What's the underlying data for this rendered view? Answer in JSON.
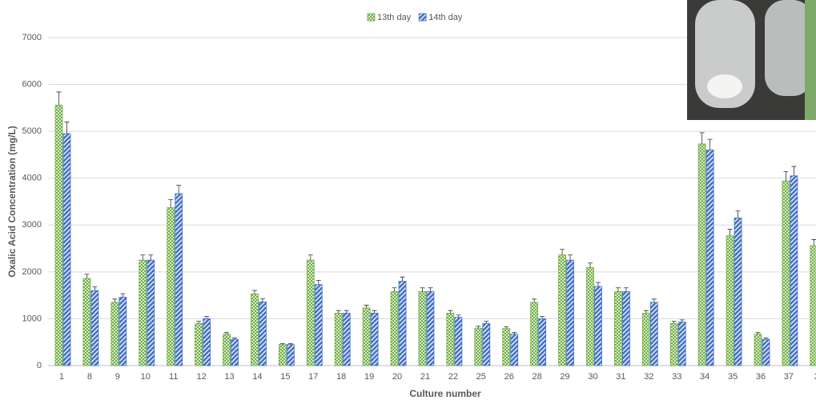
{
  "chart_data": {
    "type": "bar",
    "y_label": "Oxalic Acid Concentration (mg/L)",
    "x_label": "Culture number",
    "categories": [
      "1",
      "8",
      "9",
      "10",
      "11",
      "12",
      "13",
      "14",
      "15",
      "17",
      "18",
      "19",
      "20",
      "21",
      "22",
      "25",
      "26",
      "28",
      "29",
      "30",
      "31",
      "32",
      "33",
      "34",
      "35",
      "36",
      "37",
      "3"
    ],
    "series": [
      {
        "name": "13th day",
        "color": "#70ad47",
        "values": [
          5560,
          1860,
          1350,
          2250,
          3370,
          900,
          670,
          1530,
          450,
          2250,
          1120,
          1230,
          1580,
          1580,
          1120,
          800,
          790,
          1350,
          2360,
          2090,
          1580,
          1120,
          900,
          4730,
          2770,
          670,
          3940,
          2560
        ],
        "errors": [
          280,
          90,
          70,
          110,
          170,
          45,
          35,
          75,
          20,
          110,
          55,
          60,
          80,
          80,
          55,
          40,
          40,
          70,
          120,
          100,
          80,
          55,
          45,
          240,
          140,
          35,
          200,
          130
        ]
      },
      {
        "name": "14th day",
        "color": "#4472c4",
        "values": [
          4950,
          1600,
          1460,
          2250,
          3670,
          1000,
          560,
          1360,
          450,
          1730,
          1120,
          1120,
          1800,
          1580,
          1030,
          900,
          670,
          1000,
          2250,
          1690,
          1580,
          1350,
          930,
          4600,
          3150,
          560,
          4050,
          null
        ],
        "errors": [
          250,
          80,
          75,
          110,
          180,
          50,
          30,
          70,
          20,
          90,
          55,
          55,
          90,
          80,
          50,
          45,
          35,
          50,
          110,
          85,
          80,
          70,
          45,
          230,
          150,
          30,
          200,
          null
        ]
      }
    ],
    "ylim": [
      0,
      7000
    ],
    "yticks": [
      0,
      1000,
      2000,
      3000,
      4000,
      5000,
      6000,
      7000
    ],
    "grid": true,
    "legend": "top"
  }
}
